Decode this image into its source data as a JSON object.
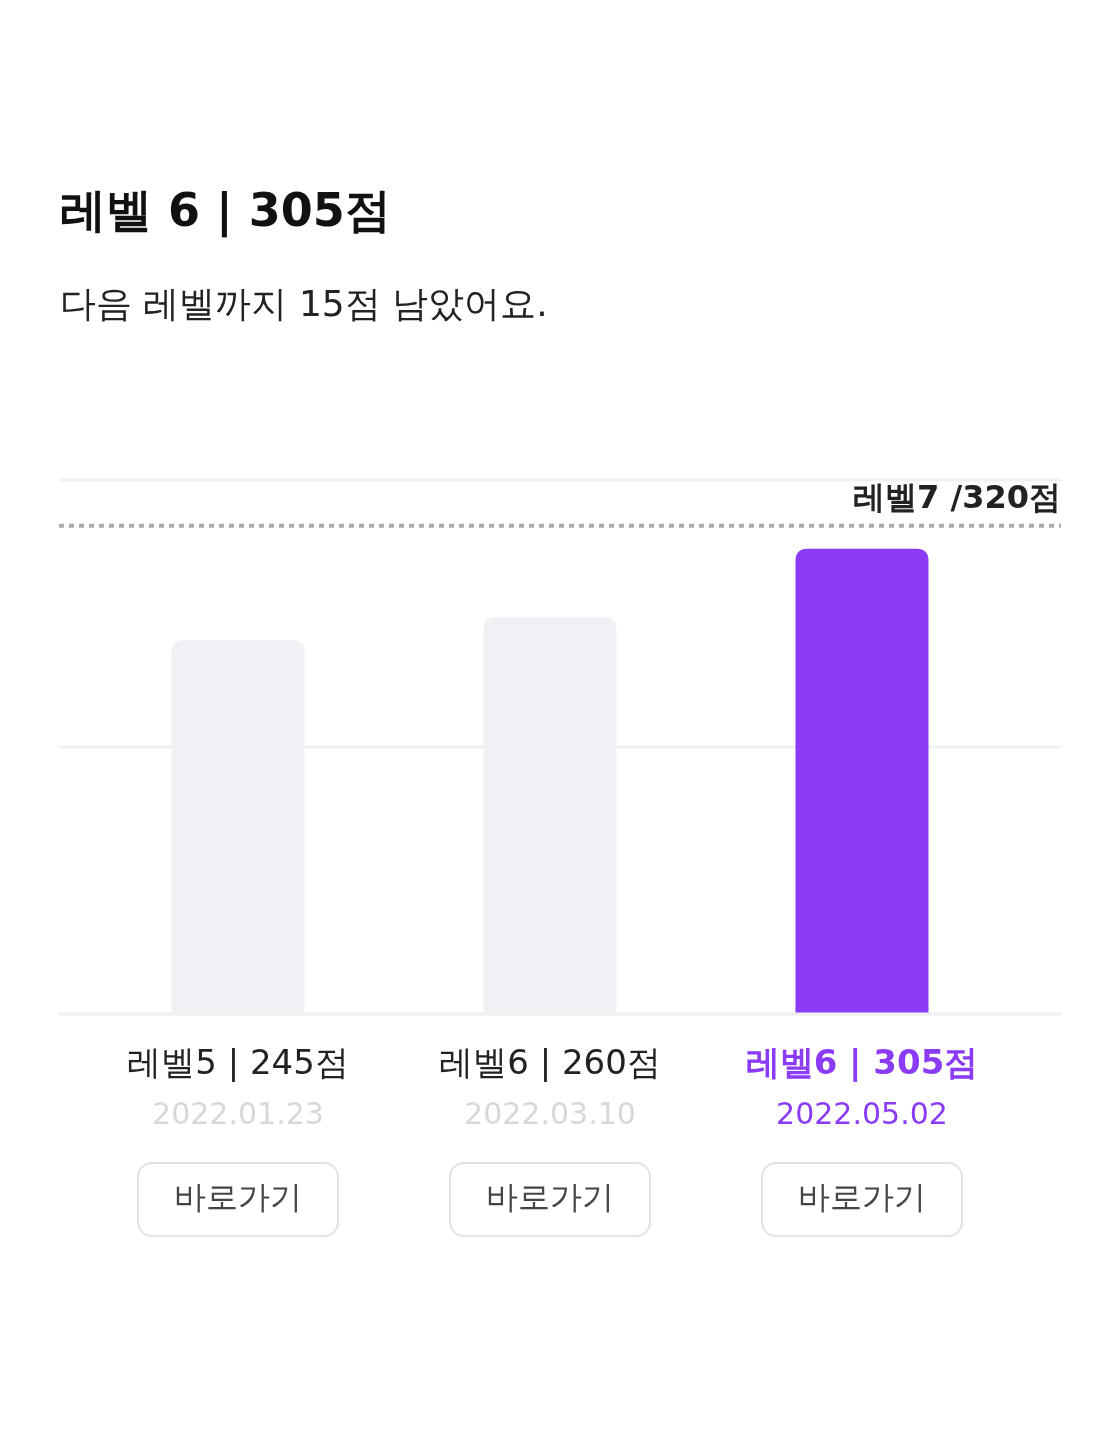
{
  "chart_data": {
    "type": "bar",
    "title": "레벨 6 | 305점",
    "subtitle": "다음 레벨까지 15점 남았어요.",
    "categories": [
      "2022.01.23",
      "2022.03.10",
      "2022.05.02"
    ],
    "values": [
      245,
      260,
      305
    ],
    "value_labels": [
      "레벨5 | 245점",
      "레벨6 | 260점",
      "레벨6 | 305점"
    ],
    "colors": [
      "#f0f0f5",
      "#f0f0f5",
      "#8b3bf5"
    ],
    "ylim": [
      0,
      350
    ],
    "yticks": [
      {
        "value": 0,
        "label": null
      },
      {
        "value": 175,
        "label": null
      },
      {
        "value": 350,
        "label": null
      }
    ],
    "tick_labels": "x",
    "grid": "y",
    "ref_lines": [
      {
        "axis": "y",
        "value": 320,
        "label": "레벨7 /320점",
        "color": "#aaaaaa",
        "line_style": "dotted"
      }
    ],
    "annotations": [
      "바로가기",
      "바로가기",
      "바로가기"
    ]
  }
}
